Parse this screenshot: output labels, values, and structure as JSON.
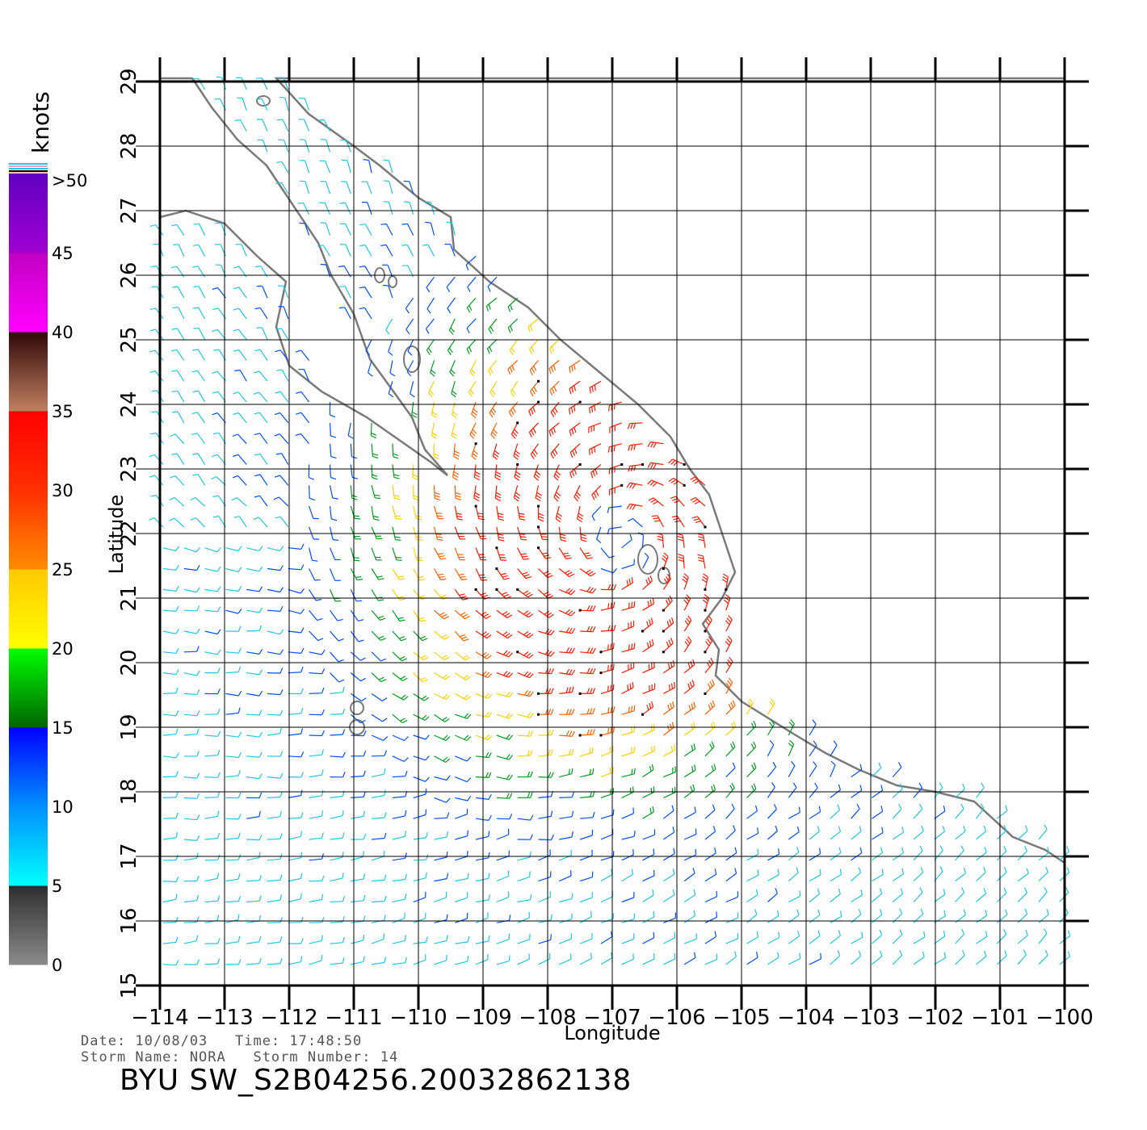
{
  "map": {
    "lon_range": [
      -114,
      -100
    ],
    "lat_range": [
      15,
      29
    ],
    "lon_ticks": [
      -114,
      -113,
      -112,
      -111,
      -110,
      -109,
      -108,
      -107,
      -106,
      -105,
      -104,
      -103,
      -102,
      -101,
      -100
    ],
    "lat_ticks": [
      15,
      16,
      17,
      18,
      19,
      20,
      21,
      22,
      23,
      24,
      25,
      26,
      27,
      28,
      29
    ],
    "xlabel": "Longitude",
    "ylabel": "Latitude",
    "storm_center": {
      "lon": -106.9,
      "lat": 21.9
    },
    "land_color": "#ffffff",
    "coast_color": "#7a7a7a",
    "grid": true
  },
  "colorbar": {
    "title": "knots",
    "bands": [
      {
        "range": [
          0,
          5
        ],
        "from": "#8a8a8a",
        "to": "#2e2e2e"
      },
      {
        "range": [
          5,
          10
        ],
        "from": "#00ffff",
        "to": "#0090ff"
      },
      {
        "range": [
          10,
          15
        ],
        "from": "#0090ff",
        "to": "#0000ff"
      },
      {
        "range": [
          15,
          20
        ],
        "from": "#006400",
        "to": "#00ff00"
      },
      {
        "range": [
          20,
          25
        ],
        "from": "#ffff00",
        "to": "#ffc800"
      },
      {
        "range": [
          25,
          30
        ],
        "from": "#ff8c00",
        "to": "#ff3000"
      },
      {
        "range": [
          30,
          35
        ],
        "from": "#ff3000",
        "to": "#ff0000"
      },
      {
        "range": [
          35,
          40
        ],
        "from": "#c08060",
        "to": "#300808"
      },
      {
        "range": [
          40,
          45
        ],
        "from": "#ff00ff",
        "to": "#c000c0"
      },
      {
        "range": [
          45,
          50
        ],
        "from": "#a000d0",
        "to": "#6000c0"
      }
    ],
    "labels": [
      "0",
      "5",
      "10",
      "15",
      "20",
      "25",
      "30",
      "35",
      "40",
      "45",
      ">50"
    ]
  },
  "info": {
    "line1": "Date: 10/08/03   Time: 17:48:50",
    "line2": "Storm Name: NORA   Storm Number: 14"
  },
  "product_title": "BYU SW_S2B04256.20032862138",
  "colors": {
    "calm": "#3a3a3a",
    "light": "#1ec8e6",
    "moderate": "#0050ff",
    "fresh": "#00a020",
    "strong": "#ffd000",
    "gale": "#ff6000",
    "storm": "#ff1a00"
  }
}
